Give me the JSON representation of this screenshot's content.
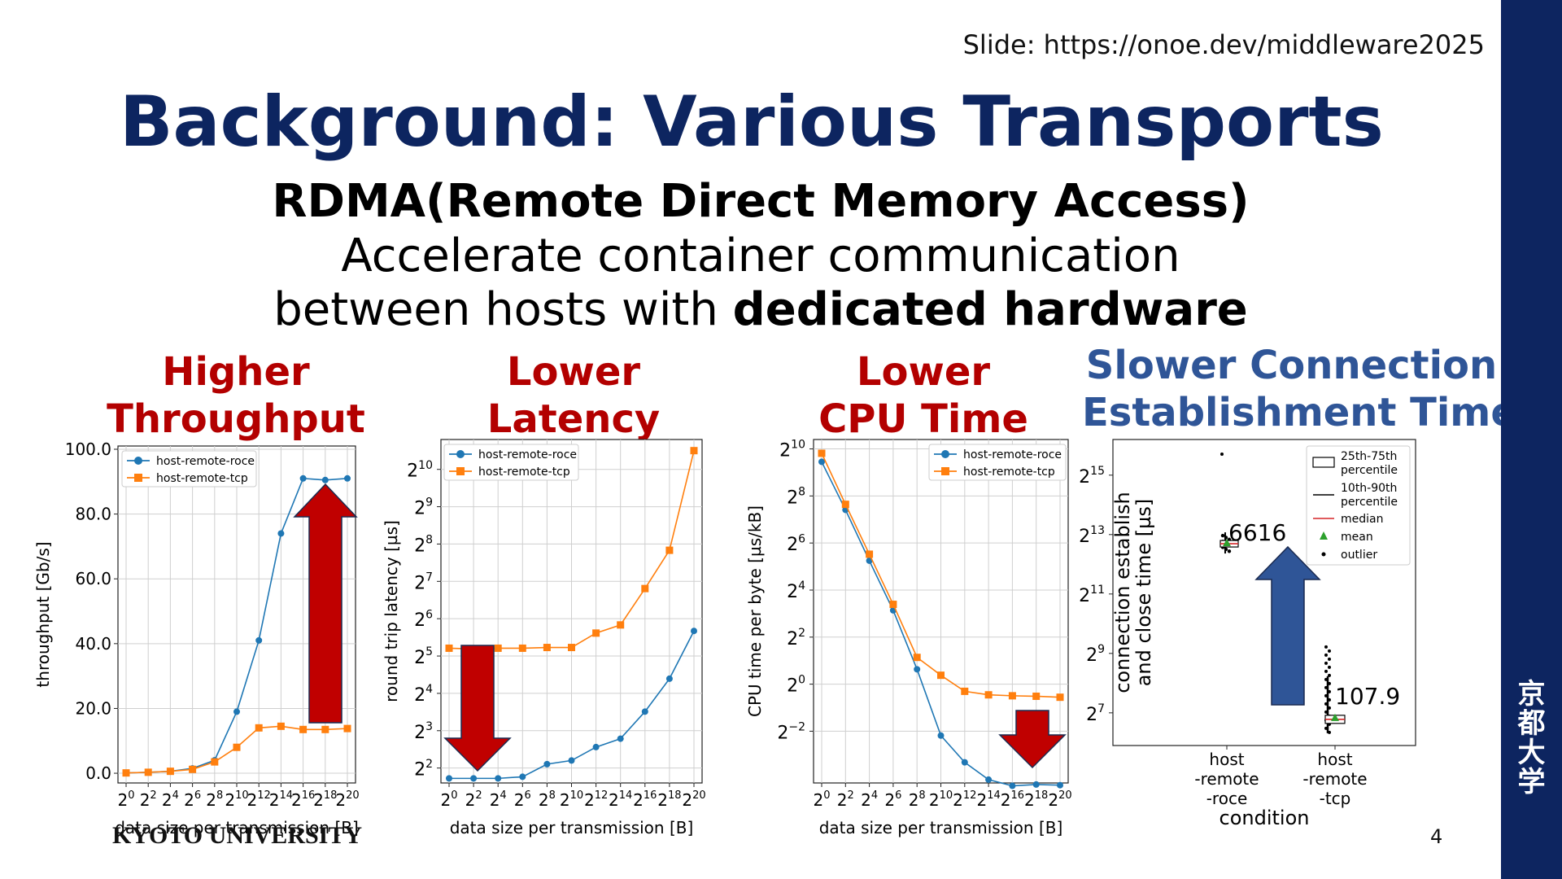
{
  "slide_url": "Slide: https://onoe.dev/middleware2025",
  "title": "Background: Various Transports",
  "subtitle": {
    "line1": "RDMA(Remote Direct Memory Access)",
    "line2": "Accelerate container communication",
    "line3_prefix": "between hosts with ",
    "line3_bold": "dedicated hardware"
  },
  "captions": {
    "throughput": [
      "Higher",
      "Throughput"
    ],
    "latency": [
      "Lower",
      "Latency"
    ],
    "cpu": [
      "Lower",
      "CPU Time"
    ],
    "conn": [
      "Slower Connection",
      "Establishment Time"
    ]
  },
  "footer": {
    "university": "KYOTO UNIVERSITY",
    "kanji": "京都大学",
    "page": "4"
  },
  "colors": {
    "roce": "#1f77b4",
    "tcp": "#ff7f0e",
    "arrow_red": "#c00000",
    "arrow_blue": "#2f5597",
    "navy": "#0d2560"
  },
  "chart_data": [
    {
      "type": "line",
      "xlabel": "data size per transmission [B]",
      "ylabel": "throughput [Gb/s]",
      "x_exponents": [
        0,
        2,
        4,
        6,
        8,
        10,
        12,
        14,
        16,
        18,
        20
      ],
      "x_scale": "log2",
      "ylim": [
        -3,
        101
      ],
      "yticks": [
        "0.0",
        "20.0",
        "40.0",
        "60.0",
        "80.0",
        "100.0"
      ],
      "legend": "top-left",
      "grid": true,
      "series": [
        {
          "name": "host-remote-roce",
          "values": [
            0.1,
            0.3,
            0.6,
            1.5,
            4,
            19,
            41,
            74,
            91,
            90.5,
            91
          ]
        },
        {
          "name": "host-remote-tcp",
          "values": [
            0.1,
            0.3,
            0.6,
            1.2,
            3.5,
            8,
            14,
            14.5,
            13.5,
            13.5,
            13.8
          ]
        }
      ],
      "annotation": "up-arrow"
    },
    {
      "type": "line",
      "xlabel": "data size per transmission [B]",
      "ylabel": "round trip latency [µs]",
      "x_exponents": [
        0,
        2,
        4,
        6,
        8,
        10,
        12,
        14,
        16,
        18,
        20
      ],
      "x_scale": "log2",
      "y_scale": "log2",
      "ylim_exp": [
        1.6,
        10.8
      ],
      "yticks_exp": [
        2,
        3,
        4,
        5,
        6,
        7,
        8,
        9,
        10
      ],
      "legend": "top-left",
      "grid": true,
      "series": [
        {
          "name": "host-remote-roce",
          "values": [
            3.3,
            3.3,
            3.3,
            3.4,
            4.3,
            4.6,
            5.9,
            6.9,
            11.4,
            21,
            51
          ]
        },
        {
          "name": "host-remote-tcp",
          "values": [
            37,
            36.5,
            37,
            37,
            37.5,
            37.5,
            49,
            57,
            112,
            228,
            1450
          ]
        }
      ],
      "annotation": "down-arrow"
    },
    {
      "type": "line",
      "xlabel": "data size per transmission [B]",
      "ylabel": "CPU time per byte [µs/kB]",
      "x_exponents": [
        0,
        2,
        4,
        6,
        8,
        10,
        12,
        14,
        16,
        18,
        20
      ],
      "x_scale": "log2",
      "y_scale": "log2",
      "ylim_exp": [
        -4.2,
        10.4
      ],
      "yticks_exp": [
        -2,
        0,
        2,
        4,
        6,
        8,
        10
      ],
      "legend": "top-right",
      "grid": true,
      "series": [
        {
          "name": "host-remote-roce",
          "values": [
            700,
            170,
            38,
            8.8,
            1.55,
            0.22,
            0.1,
            0.06,
            0.05,
            0.052,
            0.051
          ]
        },
        {
          "name": "host-remote-tcp",
          "values": [
            900,
            200,
            46,
            10.5,
            2.2,
            1.3,
            0.81,
            0.73,
            0.71,
            0.7,
            0.68
          ]
        }
      ],
      "annotation": "down-arrow"
    },
    {
      "type": "box",
      "xlabel": "condition",
      "ylabel": "connection establish and close time [µs]",
      "y_scale": "log2",
      "ylim_exp": [
        5.9,
        16.2
      ],
      "yticks_exp": [
        7,
        9,
        11,
        13,
        15
      ],
      "categories": [
        "host\n-remote\n-roce",
        "host\n-remote\n-tcp"
      ],
      "medians": [
        6616,
        107.9
      ],
      "median_labels": [
        "6616",
        "107.9"
      ],
      "legend": [
        "25th-75th\npercentile",
        "10th-90th\npercentile",
        "median",
        "mean",
        "outlier"
      ],
      "annotation": "up-arrow"
    }
  ]
}
